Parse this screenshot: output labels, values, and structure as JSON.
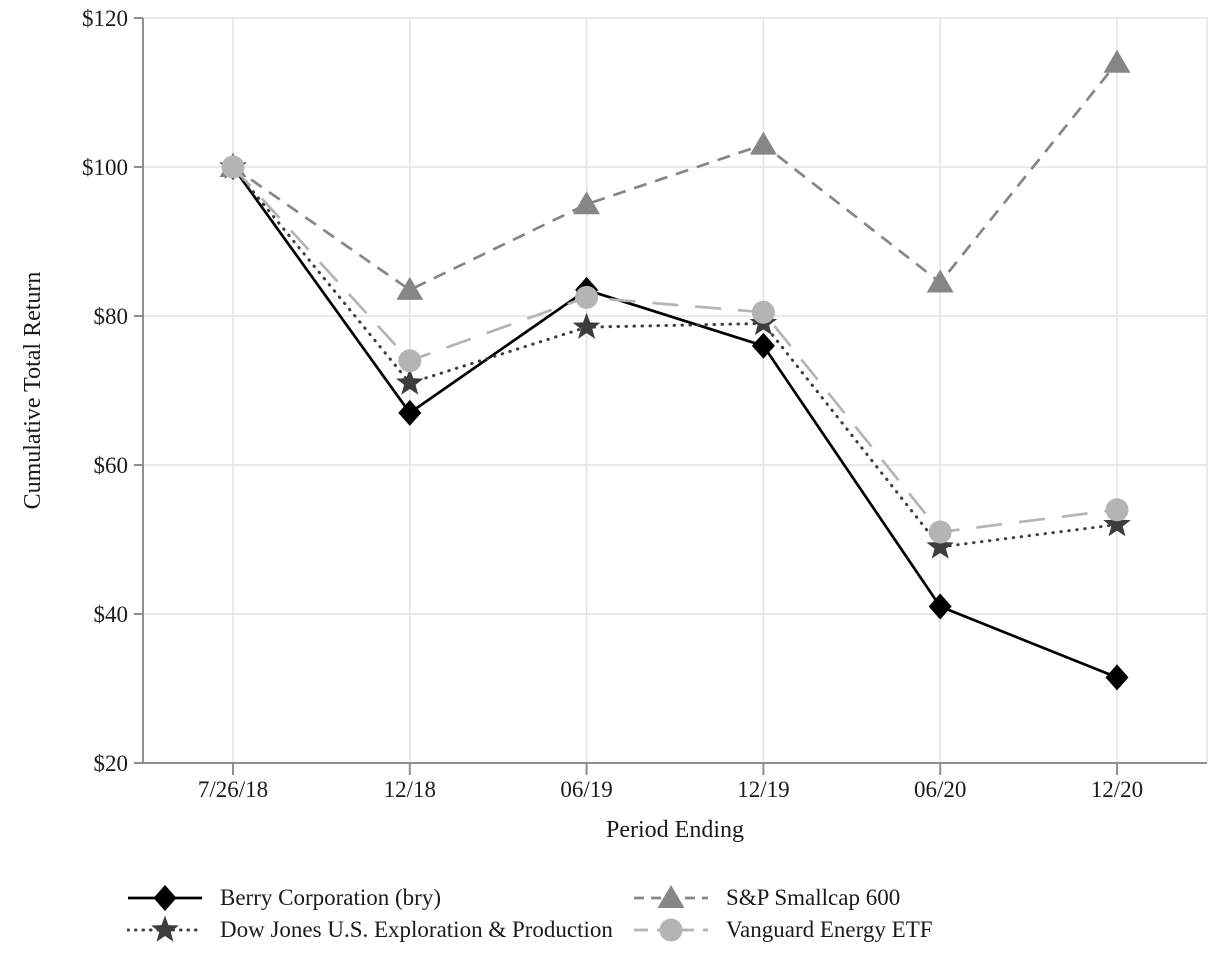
{
  "chart_data": {
    "type": "line",
    "title": "",
    "xlabel": "Period Ending",
    "ylabel": "Cumulative Total Return",
    "categories": [
      "7/26/18",
      "12/18",
      "06/19",
      "12/19",
      "06/20",
      "12/20"
    ],
    "ylim": [
      20,
      120
    ],
    "yticks": [
      20,
      40,
      60,
      80,
      100,
      120
    ],
    "ytick_labels": [
      "$20",
      "$40",
      "$60",
      "$80",
      "$100",
      "$120"
    ],
    "grid": "on",
    "legend_position": "bottom",
    "legend_display_order": [
      0,
      2,
      1,
      3
    ],
    "series": [
      {
        "id": "berry",
        "name": "Berry Corporation (bry)",
        "marker": "diamond",
        "line_style": "solid",
        "color": "#000000",
        "values": [
          100,
          67,
          83.5,
          76,
          41,
          31.5
        ]
      },
      {
        "id": "dow-jones",
        "name": "Dow Jones U.S. Exploration & Production",
        "marker": "star",
        "line_style": "dotted",
        "color": "#3d3d3d",
        "values": [
          100,
          71,
          78.5,
          79,
          49,
          52
        ]
      },
      {
        "id": "sp-smallcap-600",
        "name": "S&P Smallcap 600",
        "marker": "triangle",
        "line_style": "dashed",
        "color": "#868686",
        "values": [
          100,
          83.5,
          95,
          103,
          84.5,
          114
        ]
      },
      {
        "id": "vanguard-energy-etf",
        "name": "Vanguard Energy ETF",
        "marker": "circle",
        "line_style": "long-dash",
        "color": "#b4b4b4",
        "values": [
          100,
          74,
          82.5,
          80.5,
          51,
          54
        ]
      }
    ],
    "colors": {
      "grid": "#e4e4e4",
      "axis": "#8f8f8f",
      "text": "#1a1a1a"
    }
  }
}
